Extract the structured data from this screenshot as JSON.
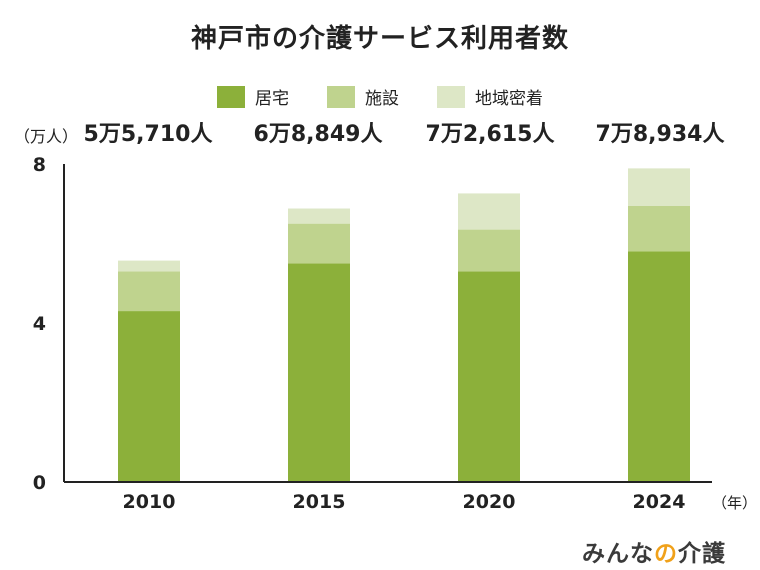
{
  "brand": {
    "part1": "みんな",
    "part2": "の",
    "part3": "介護"
  },
  "colors": {
    "居宅": "#8cb03a",
    "施設": "#bfd38e",
    "地域密着": "#dde7c6"
  },
  "chart_data": {
    "type": "bar",
    "stacked": true,
    "title": "神戸市の介護サービス利用者数",
    "y_unit_label": "（万人）",
    "x_unit_label": "（年）",
    "categories": [
      "2010",
      "2015",
      "2020",
      "2024"
    ],
    "series": [
      {
        "name": "居宅",
        "values": [
          4.3,
          5.5,
          5.3,
          5.8
        ]
      },
      {
        "name": "施設",
        "values": [
          1.0,
          1.0,
          1.05,
          1.15
        ]
      },
      {
        "name": "地域密着",
        "values": [
          0.27,
          0.38,
          0.91,
          0.94
        ]
      }
    ],
    "totals": [
      "5万5,710人",
      "6万8,849人",
      "7万2,615人",
      "7万8,934人"
    ],
    "ylim": [
      0,
      8
    ],
    "yticks": [
      0,
      4,
      8
    ],
    "legend": "top"
  }
}
